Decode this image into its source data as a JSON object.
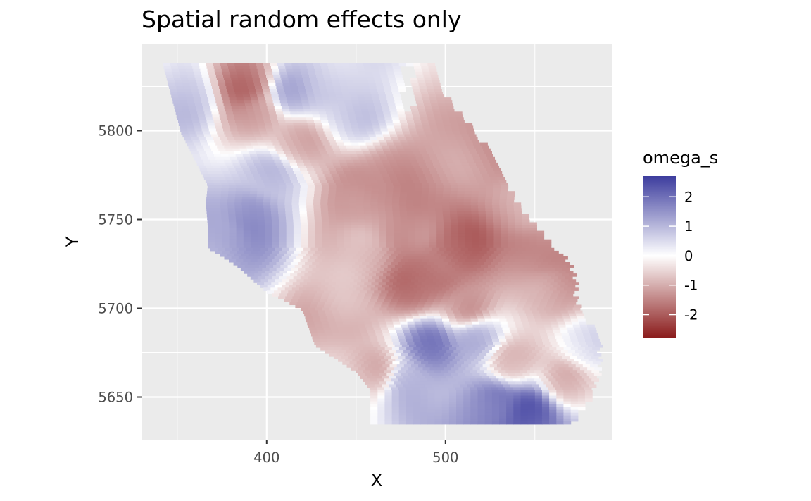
{
  "title": "Spatial random effects only",
  "chart_data": {
    "type": "heatmap",
    "title": "Spatial random effects only",
    "xlabel": "X",
    "ylabel": "Y",
    "xlim": [
      330,
      593
    ],
    "ylim": [
      5626,
      5849
    ],
    "x_ticks": [
      400,
      500
    ],
    "x_tick_labels": [
      "400",
      "500"
    ],
    "x_minor": [
      350,
      450,
      550
    ],
    "y_ticks": [
      5650,
      5700,
      5750,
      5800
    ],
    "y_tick_labels": [
      "5650",
      "5700",
      "5750",
      "5800"
    ],
    "y_minor": [
      5675,
      5725,
      5775,
      5825
    ],
    "grid": true,
    "legend": {
      "title": "omega_s",
      "position": "right",
      "range": [
        -2.8,
        2.7
      ],
      "breaks": [
        2,
        1,
        0,
        -1,
        -2
      ],
      "labels": [
        "2",
        "1",
        "0",
        "-1",
        "-2"
      ],
      "colors": {
        "low": "#8a1a1a",
        "mid": "#ffffff",
        "high": "#3d3d9e"
      }
    },
    "cell_size": 4,
    "region": {
      "left_edge": [
        [
          5838,
          342
        ],
        [
          5800,
          352
        ],
        [
          5770,
          367
        ],
        [
          5760,
          366
        ],
        [
          5748,
          367
        ],
        [
          5735,
          367
        ],
        [
          5725,
          383
        ],
        [
          5710,
          400
        ],
        [
          5700,
          420
        ],
        [
          5680,
          427
        ],
        [
          5665,
          450
        ],
        [
          5655,
          458
        ],
        [
          5635,
          458
        ]
      ],
      "right_edge": [
        [
          5838,
          492
        ],
        [
          5825,
          495
        ],
        [
          5813,
          504
        ],
        [
          5800,
          515
        ],
        [
          5780,
          528
        ],
        [
          5760,
          538
        ],
        [
          5740,
          555
        ],
        [
          5725,
          568
        ],
        [
          5715,
          571
        ],
        [
          5705,
          571
        ],
        [
          5690,
          580
        ],
        [
          5680,
          584
        ],
        [
          5672,
          584
        ],
        [
          5660,
          583
        ],
        [
          5648,
          578
        ],
        [
          5635,
          568
        ]
      ]
    },
    "blobs": [
      {
        "x": 387,
        "y": 5826,
        "value": -1.6
      },
      {
        "x": 393,
        "y": 5810,
        "value": -0.9
      },
      {
        "x": 415,
        "y": 5795,
        "value": -0.8
      },
      {
        "x": 355,
        "y": 5818,
        "value": 0.6
      },
      {
        "x": 412,
        "y": 5822,
        "value": 0.9
      },
      {
        "x": 430,
        "y": 5825,
        "value": 0.6
      },
      {
        "x": 445,
        "y": 5810,
        "value": 0.5
      },
      {
        "x": 400,
        "y": 5775,
        "value": 0.6
      },
      {
        "x": 388,
        "y": 5752,
        "value": 1.4
      },
      {
        "x": 375,
        "y": 5742,
        "value": 1.0
      },
      {
        "x": 450,
        "y": 5765,
        "value": -1.3
      },
      {
        "x": 470,
        "y": 5775,
        "value": -1.1
      },
      {
        "x": 480,
        "y": 5745,
        "value": -1.2
      },
      {
        "x": 452,
        "y": 5730,
        "value": -0.6
      },
      {
        "x": 505,
        "y": 5735,
        "value": -1.9
      },
      {
        "x": 493,
        "y": 5720,
        "value": -1.6
      },
      {
        "x": 480,
        "y": 5712,
        "value": -1.5
      },
      {
        "x": 510,
        "y": 5700,
        "value": -1.0
      },
      {
        "x": 520,
        "y": 5785,
        "value": -1.1
      },
      {
        "x": 540,
        "y": 5760,
        "value": -0.8
      },
      {
        "x": 550,
        "y": 5730,
        "value": -1.3
      },
      {
        "x": 558,
        "y": 5712,
        "value": -1.0
      },
      {
        "x": 440,
        "y": 5700,
        "value": -0.8
      },
      {
        "x": 460,
        "y": 5665,
        "value": -0.7
      },
      {
        "x": 490,
        "y": 5680,
        "value": 1.6
      },
      {
        "x": 515,
        "y": 5685,
        "value": 1.1
      },
      {
        "x": 475,
        "y": 5660,
        "value": 0.9
      },
      {
        "x": 535,
        "y": 5670,
        "value": -0.9
      },
      {
        "x": 565,
        "y": 5660,
        "value": -0.7
      },
      {
        "x": 545,
        "y": 5642,
        "value": 2.3
      },
      {
        "x": 525,
        "y": 5648,
        "value": 1.7
      },
      {
        "x": 575,
        "y": 5678,
        "value": 0.4
      }
    ]
  }
}
